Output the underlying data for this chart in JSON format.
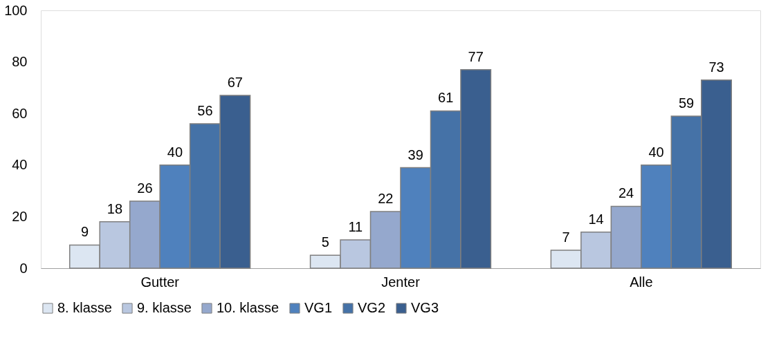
{
  "chart_data": {
    "type": "bar",
    "categories": [
      "Gutter",
      "Jenter",
      "Alle"
    ],
    "series": [
      {
        "name": "8. klasse",
        "color": "#dce6f2",
        "values": [
          9,
          5,
          7
        ]
      },
      {
        "name": "9. klasse",
        "color": "#b9c7e0",
        "values": [
          18,
          11,
          14
        ]
      },
      {
        "name": "10. klasse",
        "color": "#95a8cd",
        "values": [
          26,
          22,
          24
        ]
      },
      {
        "name": "VG1",
        "color": "#4f81bd",
        "values": [
          40,
          39,
          40
        ]
      },
      {
        "name": "VG2",
        "color": "#4572a7",
        "values": [
          56,
          61,
          59
        ]
      },
      {
        "name": "VG3",
        "color": "#3a5f8f",
        "values": [
          67,
          77,
          73
        ]
      }
    ],
    "ylim": [
      0,
      100
    ],
    "yticks": [
      0,
      20,
      40,
      60,
      80,
      100
    ],
    "data_labels": true,
    "grid": false,
    "legend": "bottom"
  }
}
